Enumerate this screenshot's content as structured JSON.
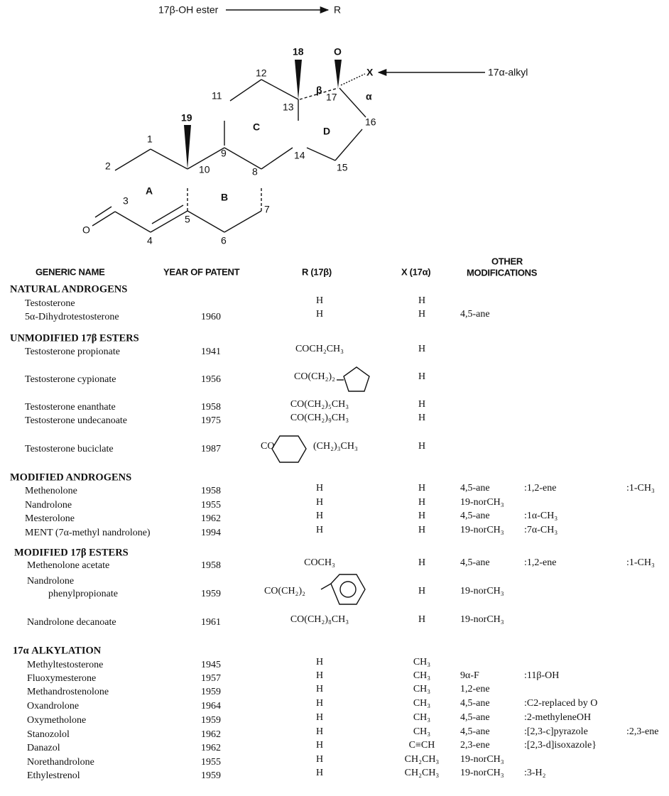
{
  "diagram": {
    "labels": [
      "17β-OH ester",
      "R",
      "18",
      "O",
      "X",
      "17α-alkyl",
      "12",
      "11",
      "β",
      "α",
      "13",
      "17",
      "19",
      "C",
      "D",
      "16",
      "9",
      "14",
      "1",
      "2",
      "10",
      "8",
      "15",
      "A",
      "B",
      "3",
      "7",
      "5",
      "O",
      "4",
      "6"
    ]
  },
  "table": {
    "headers": [
      "GENERIC NAME",
      "YEAR OF PATENT",
      "R (17β)",
      "X (17α)",
      "OTHER",
      "MODIFICATIONS"
    ],
    "sections": [
      {
        "title": "NATURAL ANDROGENS",
        "rows": [
          {
            "name": "Testosterone",
            "r": "H",
            "x": "H",
            "mods": []
          },
          {
            "name": "5α-Dihydrotestosterone",
            "year": "1960",
            "r": "H",
            "x": "H",
            "mods": [
              "4,5-ane"
            ]
          }
        ]
      },
      {
        "title": "UNMODIFIED 17β ESTERS",
        "rows": [
          {
            "name": "Testosterone propionate",
            "year": "1941",
            "r": "COCH₂CH₃",
            "x": "H",
            "mods": []
          },
          {
            "name": "Testosterone cypionate",
            "year": "1956",
            "r": "CO(CH₂)₂",
            "x": "H",
            "mods": []
          },
          {
            "name": "Testosterone enanthate",
            "year": "1958",
            "r": "CO(CH₂)₅CH₃",
            "x": "H",
            "mods": []
          },
          {
            "name": "Testosterone undecanoate",
            "year": "1975",
            "r": "CO(CH₂)₉CH₃",
            "x": "H",
            "mods": []
          },
          {
            "name": "Testosterone buciclate",
            "year": "1987",
            "r": "CO",
            "r2": "(CH₂)₃CH₃",
            "x": "H",
            "mods": []
          }
        ]
      },
      {
        "title": "MODIFIED ANDROGENS",
        "rows": [
          {
            "name": "Methenolone",
            "year": "1958",
            "r": "H",
            "x": "H",
            "mods": [
              "4,5-ane",
              ":1,2-ene",
              ":1-CH₃"
            ]
          },
          {
            "name": "Nandrolone",
            "year": "1955",
            "r": "H",
            "x": "H",
            "mods": [
              "19-norCH₃"
            ]
          },
          {
            "name": "Mesterolone",
            "year": "1962",
            "r": "H",
            "x": "H",
            "mods": [
              "4,5-ane",
              ":1α-CH₃"
            ]
          },
          {
            "name": "MENT (7α-methyl nandrolone)",
            "year": "1994",
            "r": "H",
            "x": "H",
            "mods": [
              "19-norCH₃",
              ":7α-CH₃"
            ]
          }
        ]
      },
      {
        "title": "MODIFIED 17β ESTERS",
        "rows": [
          {
            "name": "Methenolone acetate",
            "year": "1958",
            "r": "COCH₃",
            "x": "H",
            "mods": [
              "4,5-ane",
              ":1,2-ene",
              ":1-CH₃"
            ]
          },
          {
            "name": "Nandrolone",
            "name_cont": "phenylpropionate",
            "year": "1959",
            "r": "CO(CH₂)₂",
            "x": "H",
            "mods": [
              "19-norCH₃"
            ]
          },
          {
            "name": "Nandrolone decanoate",
            "year": "1961",
            "r": "CO(CH₂)₈CH₃",
            "x": "H",
            "mods": [
              "19-norCH₃"
            ]
          }
        ]
      },
      {
        "title": "17α ALKYLATION",
        "rows": [
          {
            "name": "Methyltestosterone",
            "year": "1945",
            "r": "H",
            "x": "CH₃",
            "mods": []
          },
          {
            "name": "Fluoxymesterone",
            "year": "1957",
            "r": "H",
            "x": "CH₃",
            "mods": [
              "9α-F",
              ":11β-OH"
            ]
          },
          {
            "name": "Methandrostenolone",
            "year": "1959",
            "r": "H",
            "x": "CH₃",
            "mods": [
              "1,2-ene"
            ]
          },
          {
            "name": "Oxandrolone",
            "year": "1964",
            "r": "H",
            "x": "CH₃",
            "mods": [
              "4,5-ane",
              ":C2-replaced by O"
            ]
          },
          {
            "name": "Oxymetholone",
            "year": "1959",
            "r": "H",
            "x": "CH₃",
            "mods": [
              "4,5-ane",
              ":2-methyleneOH"
            ]
          },
          {
            "name": "Stanozolol",
            "year": "1962",
            "r": "H",
            "x": "CH₃",
            "mods": [
              "4,5-ane",
              ":[2,3-c]pyrazole",
              ":2,3-ene"
            ]
          },
          {
            "name": "Danazol",
            "year": "1962",
            "r": "H",
            "x": "C≡CH",
            "mods": [
              "2,3-ene",
              ":[2,3-d]isoxazole}"
            ]
          },
          {
            "name": "Norethandrolone",
            "year": "1955",
            "r": "H",
            "x": "CH₂CH₃",
            "mods": [
              "19-norCH₃"
            ]
          },
          {
            "name": "Ethylestrenol",
            "year": "1959",
            "r": "H",
            "x": "CH₂CH₃",
            "mods": [
              "19-norCH₃",
              ":3-H₂"
            ]
          }
        ]
      }
    ]
  }
}
